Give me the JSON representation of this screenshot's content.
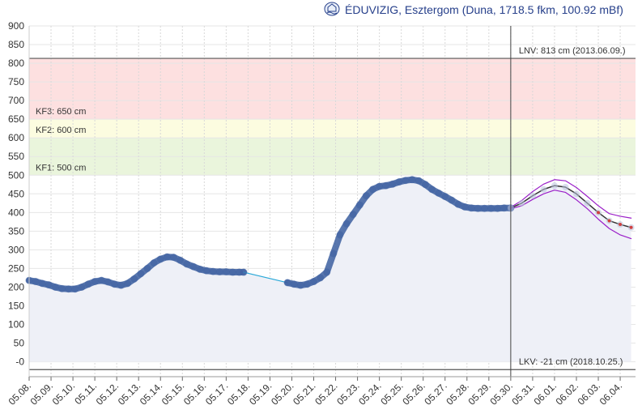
{
  "header": {
    "title": "ÉDUVIZIG, Esztergom (Duna, 1718.5 fkm, 100.92 mBf)",
    "logo_icon": "eduvizig-logo-icon"
  },
  "chart_data": {
    "type": "line",
    "title": "ÉDUVIZIG, Esztergom (Duna, 1718.5 fkm, 100.92 mBf)",
    "xlabel": "",
    "ylabel": "",
    "ylim": [
      -40,
      900
    ],
    "yticks": [
      0,
      50,
      100,
      150,
      200,
      250,
      300,
      350,
      400,
      450,
      500,
      550,
      600,
      650,
      700,
      750,
      800,
      850,
      900
    ],
    "ytick_labels": [
      "-0",
      "50",
      "100",
      "150",
      "200",
      "250",
      "300",
      "350",
      "400",
      "450",
      "500",
      "550",
      "600",
      "650",
      "700",
      "750",
      "800",
      "850",
      "900"
    ],
    "xlim": [
      0,
      27.7
    ],
    "xtick_labels": [
      "05.08.",
      "05.09.",
      "05.10.",
      "05.11.",
      "05.12.",
      "05.13.",
      "05.14.",
      "05.15.",
      "05.16.",
      "05.17.",
      "05.18.",
      "05.19.",
      "05.20.",
      "05.21.",
      "05.22.",
      "05.23.",
      "05.24.",
      "05.25.",
      "05.26.",
      "05.27.",
      "05.28.",
      "05.29.",
      "05.30.",
      "05.31.",
      "06.01.",
      "06.02.",
      "06.03.",
      "06.04."
    ],
    "grid": true,
    "bands": [
      {
        "label": "KF3: 650 cm",
        "from": 650,
        "to": 813,
        "color": "#fde0e0"
      },
      {
        "label": "KF2: 600 cm",
        "from": 600,
        "to": 650,
        "color": "#fcfce0"
      },
      {
        "label": "KF1: 500 cm",
        "from": 500,
        "to": 600,
        "color": "#eaf5dc"
      }
    ],
    "reference_lines": [
      {
        "label": "LNV: 813 cm (2013.06.09.)",
        "value": 813
      },
      {
        "label": "LKV: -21 cm (2018.10.25.)",
        "value": -21
      }
    ],
    "forecast_start": 22.0,
    "series": [
      {
        "role": "measured",
        "color": "#3c5fa0",
        "x": [
          0.0,
          0.3,
          0.6,
          0.9,
          1.2,
          1.5,
          1.8,
          2.1,
          2.4,
          2.7,
          3.0,
          3.3,
          3.6,
          3.9,
          4.2,
          4.5,
          4.8,
          5.1,
          5.4,
          5.7,
          6.0,
          6.3,
          6.6,
          6.9,
          7.2,
          7.5,
          7.8,
          8.1,
          8.4,
          8.7,
          9.0,
          9.3,
          9.6,
          9.8
        ],
        "y": [
          218,
          215,
          210,
          206,
          200,
          196,
          195,
          195,
          200,
          208,
          215,
          218,
          214,
          208,
          205,
          210,
          222,
          236,
          250,
          265,
          275,
          281,
          280,
          272,
          262,
          255,
          248,
          244,
          242,
          241,
          241,
          240,
          240,
          240
        ]
      },
      {
        "role": "gap",
        "color": "#29a8d8",
        "x": [
          9.8,
          11.8
        ],
        "y": [
          240,
          212
        ]
      },
      {
        "role": "measured",
        "color": "#3c5fa0",
        "x": [
          11.8,
          12.1,
          12.4,
          12.7,
          13.0,
          13.3,
          13.6,
          13.9,
          14.2,
          14.5,
          14.8,
          15.1,
          15.4,
          15.7,
          16.0,
          16.3,
          16.6,
          16.9,
          17.2,
          17.5,
          17.8,
          18.1,
          18.4,
          18.7,
          19.0,
          19.3,
          19.6,
          19.9,
          20.2,
          20.5,
          20.8,
          21.1,
          21.4,
          21.7,
          22.0
        ],
        "y": [
          212,
          208,
          205,
          208,
          215,
          225,
          240,
          290,
          340,
          370,
          395,
          420,
          445,
          462,
          470,
          472,
          476,
          482,
          486,
          488,
          485,
          475,
          462,
          452,
          443,
          433,
          422,
          415,
          412,
          411,
          411,
          411,
          411,
          412,
          412
        ]
      },
      {
        "role": "forecast",
        "color": "#333333",
        "x": [
          22.0,
          22.5,
          23.0,
          23.5,
          24.0,
          24.5,
          25.0,
          25.5,
          26.0,
          26.5,
          27.0,
          27.5
        ],
        "y": [
          412,
          425,
          445,
          462,
          472,
          468,
          450,
          425,
          400,
          378,
          368,
          360
        ]
      },
      {
        "role": "forecast-upper",
        "color": "#9a1ec8",
        "x": [
          22.0,
          22.5,
          23.0,
          23.5,
          24.0,
          24.5,
          25.0,
          25.5,
          26.0,
          26.5,
          27.0,
          27.5
        ],
        "y": [
          414,
          432,
          456,
          476,
          488,
          485,
          467,
          443,
          418,
          397,
          390,
          385
        ]
      },
      {
        "role": "forecast-lower",
        "color": "#9a1ec8",
        "x": [
          22.0,
          22.5,
          23.0,
          23.5,
          24.0,
          24.5,
          25.0,
          25.5,
          26.0,
          26.5,
          27.0,
          27.5
        ],
        "y": [
          410,
          418,
          435,
          450,
          460,
          454,
          434,
          410,
          382,
          357,
          340,
          330
        ]
      }
    ]
  }
}
